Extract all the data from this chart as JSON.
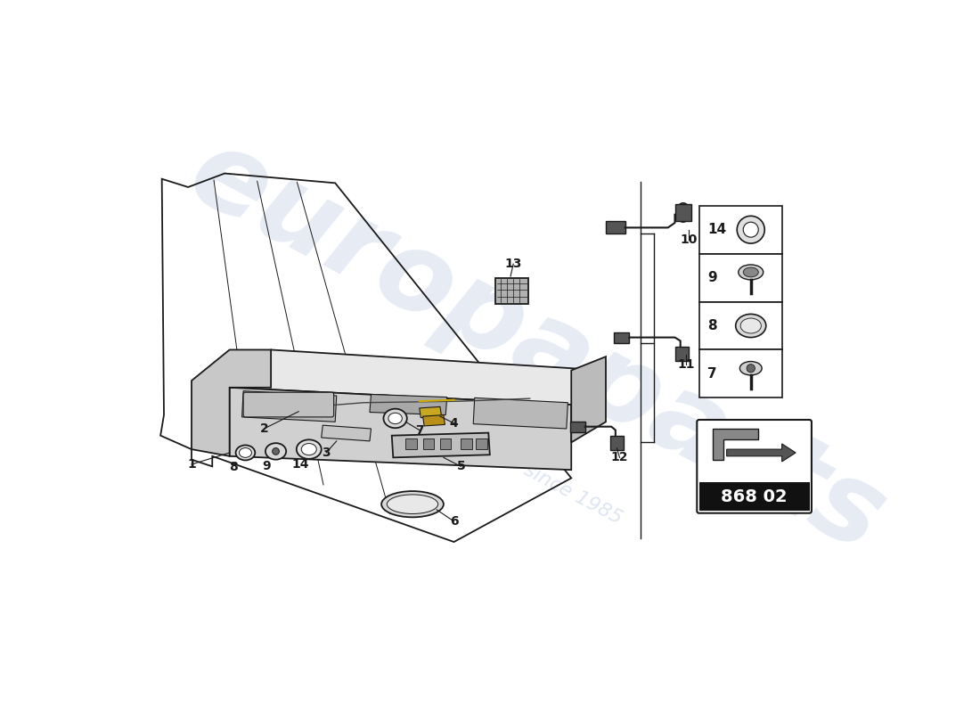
{
  "part_number": "868 02",
  "background_color": "#ffffff",
  "line_color": "#1a1a1a",
  "watermark_color": "#c8d4e8",
  "small_parts": [
    {
      "id": "14",
      "shape": "ring"
    },
    {
      "id": "9",
      "shape": "screw_cap"
    },
    {
      "id": "8",
      "shape": "dome"
    },
    {
      "id": "7",
      "shape": "screw"
    }
  ]
}
